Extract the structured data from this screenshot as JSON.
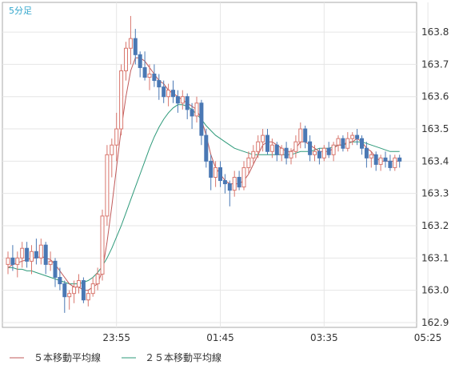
{
  "chart_data": {
    "type": "candlestick",
    "timeframe_label": "5分足",
    "ylim": [
      162.885,
      163.892
    ],
    "y_ticks": [
      163.8,
      163.7,
      163.6,
      163.5,
      163.4,
      163.3,
      163.2,
      163.1,
      163.0,
      162.9
    ],
    "y_tick_labels": [
      "163.8",
      "163.7",
      "163.6",
      "163.5",
      "163.4",
      "163.3",
      "163.2",
      "163.1",
      "163.0",
      "162.9"
    ],
    "x_tick_labels": [
      "23:55",
      "01:45",
      "03:35",
      "05:25"
    ],
    "x_tick_candle_index": [
      23,
      45,
      67,
      89
    ],
    "grid": true,
    "colors": {
      "up": "#d8766d",
      "down": "#4a78b4",
      "ma5": "#c05a5a",
      "ma25": "#2e9a7a",
      "grid": "#e6e6e6",
      "frame": "#aaaaaa",
      "label": "#333333",
      "timeframe": "#33a6cc"
    },
    "legend_position": "bottom-left",
    "ohlc": [
      [
        163.08,
        163.12,
        163.05,
        163.1
      ],
      [
        163.1,
        163.14,
        163.06,
        163.08
      ],
      [
        163.08,
        163.12,
        163.04,
        163.1
      ],
      [
        163.1,
        163.15,
        163.07,
        163.13
      ],
      [
        163.13,
        163.15,
        163.07,
        163.09
      ],
      [
        163.09,
        163.14,
        163.05,
        163.12
      ],
      [
        163.12,
        163.16,
        163.08,
        163.1
      ],
      [
        163.1,
        163.16,
        163.08,
        163.14
      ],
      [
        163.14,
        163.15,
        163.05,
        163.08
      ],
      [
        163.08,
        163.12,
        163.06,
        163.09
      ],
      [
        163.09,
        163.1,
        163.01,
        163.04
      ],
      [
        163.04,
        163.07,
        163.0,
        163.02
      ],
      [
        163.02,
        163.03,
        162.93,
        162.98
      ],
      [
        162.98,
        163.0,
        162.94,
        162.99
      ],
      [
        162.99,
        163.03,
        162.96,
        163.01
      ],
      [
        163.01,
        163.05,
        162.99,
        163.03
      ],
      [
        163.03,
        163.04,
        162.96,
        162.97
      ],
      [
        162.97,
        163.0,
        162.95,
        162.99
      ],
      [
        162.99,
        163.04,
        162.98,
        163.02
      ],
      [
        163.02,
        163.07,
        163.0,
        163.05
      ],
      [
        163.05,
        163.25,
        163.03,
        163.23
      ],
      [
        163.23,
        163.45,
        163.2,
        163.42
      ],
      [
        163.42,
        163.47,
        163.35,
        163.45
      ],
      [
        163.45,
        163.55,
        163.4,
        163.5
      ],
      [
        163.5,
        163.7,
        163.48,
        163.68
      ],
      [
        163.68,
        163.77,
        163.65,
        163.75
      ],
      [
        163.75,
        163.85,
        163.7,
        163.78
      ],
      [
        163.78,
        163.81,
        163.7,
        163.73
      ],
      [
        163.73,
        163.74,
        163.66,
        163.69
      ],
      [
        163.69,
        163.74,
        163.65,
        163.66
      ],
      [
        163.66,
        163.7,
        163.62,
        163.67
      ],
      [
        163.67,
        163.7,
        163.63,
        163.65
      ],
      [
        163.65,
        163.67,
        163.59,
        163.63
      ],
      [
        163.63,
        163.65,
        163.58,
        163.6
      ],
      [
        163.6,
        163.64,
        163.57,
        163.62
      ],
      [
        163.62,
        163.65,
        163.58,
        163.6
      ],
      [
        163.6,
        163.62,
        163.55,
        163.58
      ],
      [
        163.58,
        163.62,
        163.56,
        163.6
      ],
      [
        163.6,
        163.61,
        163.53,
        163.56
      ],
      [
        163.56,
        163.58,
        163.5,
        163.54
      ],
      [
        163.54,
        163.6,
        163.52,
        163.58
      ],
      [
        163.58,
        163.59,
        163.45,
        163.48
      ],
      [
        163.48,
        163.5,
        163.38,
        163.4
      ],
      [
        163.4,
        163.42,
        163.31,
        163.35
      ],
      [
        163.35,
        163.4,
        163.32,
        163.38
      ],
      [
        163.38,
        163.4,
        163.32,
        163.34
      ],
      [
        163.34,
        163.36,
        163.3,
        163.33
      ],
      [
        163.33,
        163.34,
        163.26,
        163.31
      ],
      [
        163.31,
        163.37,
        163.29,
        163.35
      ],
      [
        163.35,
        163.37,
        163.31,
        163.32
      ],
      [
        163.32,
        163.4,
        163.31,
        163.38
      ],
      [
        163.38,
        163.43,
        163.36,
        163.41
      ],
      [
        163.41,
        163.45,
        163.39,
        163.43
      ],
      [
        163.43,
        163.48,
        163.41,
        163.46
      ],
      [
        163.46,
        163.5,
        163.43,
        163.48
      ],
      [
        163.48,
        163.5,
        163.42,
        163.43
      ],
      [
        163.43,
        163.47,
        163.41,
        163.45
      ],
      [
        163.45,
        163.46,
        163.4,
        163.42
      ],
      [
        163.42,
        163.45,
        163.4,
        163.44
      ],
      [
        163.44,
        163.46,
        163.39,
        163.41
      ],
      [
        163.41,
        163.44,
        163.39,
        163.43
      ],
      [
        163.43,
        163.48,
        163.41,
        163.46
      ],
      [
        163.46,
        163.52,
        163.44,
        163.5
      ],
      [
        163.5,
        163.51,
        163.44,
        163.46
      ],
      [
        163.46,
        163.48,
        163.4,
        163.42
      ],
      [
        163.42,
        163.45,
        163.4,
        163.43
      ],
      [
        163.43,
        163.44,
        163.39,
        163.41
      ],
      [
        163.41,
        163.45,
        163.4,
        163.44
      ],
      [
        163.44,
        163.46,
        163.41,
        163.42
      ],
      [
        163.42,
        163.46,
        163.4,
        163.45
      ],
      [
        163.45,
        163.48,
        163.43,
        163.47
      ],
      [
        163.47,
        163.48,
        163.43,
        163.44
      ],
      [
        163.44,
        163.49,
        163.43,
        163.47
      ],
      [
        163.47,
        163.49,
        163.45,
        163.48
      ],
      [
        163.48,
        163.5,
        163.45,
        163.47
      ],
      [
        163.47,
        163.48,
        163.42,
        163.44
      ],
      [
        163.44,
        163.46,
        163.38,
        163.41
      ],
      [
        163.41,
        163.43,
        163.38,
        163.42
      ],
      [
        163.42,
        163.43,
        163.37,
        163.39
      ],
      [
        163.39,
        163.42,
        163.37,
        163.41
      ],
      [
        163.41,
        163.43,
        163.38,
        163.4
      ],
      [
        163.4,
        163.42,
        163.37,
        163.38
      ],
      [
        163.38,
        163.42,
        163.37,
        163.41
      ],
      [
        163.41,
        163.42,
        163.38,
        163.4
      ]
    ],
    "ma5": [
      163.07,
      163.08,
      163.085,
      163.09,
      163.095,
      163.1,
      163.1,
      163.105,
      163.1,
      163.095,
      163.08,
      163.06,
      163.04,
      163.02,
      163.01,
      163.01,
      163.0,
      163.0,
      163.01,
      163.02,
      163.06,
      163.15,
      163.26,
      163.38,
      163.5,
      163.6,
      163.68,
      163.72,
      163.72,
      163.71,
      163.69,
      163.67,
      163.65,
      163.64,
      163.62,
      163.61,
      163.6,
      163.59,
      163.58,
      163.57,
      163.56,
      163.53,
      163.48,
      163.42,
      163.38,
      163.36,
      163.34,
      163.33,
      163.33,
      163.33,
      163.34,
      163.36,
      163.39,
      163.42,
      163.45,
      163.46,
      163.46,
      163.45,
      163.44,
      163.43,
      163.43,
      163.44,
      163.46,
      163.46,
      163.45,
      163.44,
      163.43,
      163.43,
      163.43,
      163.44,
      163.45,
      163.45,
      163.46,
      163.46,
      163.47,
      163.46,
      163.44,
      163.43,
      163.41,
      163.4,
      163.4,
      163.4,
      163.4,
      163.4
    ],
    "ma25": [
      163.07,
      163.07,
      163.065,
      163.065,
      163.06,
      163.06,
      163.055,
      163.05,
      163.045,
      163.04,
      163.035,
      163.03,
      163.025,
      163.02,
      163.02,
      163.02,
      163.025,
      163.03,
      163.04,
      163.055,
      163.075,
      163.1,
      163.13,
      163.165,
      163.2,
      163.24,
      163.28,
      163.32,
      163.36,
      163.4,
      163.44,
      163.475,
      163.505,
      163.53,
      163.55,
      163.565,
      163.575,
      163.575,
      163.57,
      163.56,
      163.545,
      163.53,
      163.51,
      163.495,
      163.48,
      163.47,
      163.46,
      163.45,
      163.44,
      163.435,
      163.43,
      163.425,
      163.42,
      163.42,
      163.42,
      163.42,
      163.42,
      163.42,
      163.42,
      163.42,
      163.42,
      163.425,
      163.43,
      163.43,
      163.43,
      163.435,
      163.44,
      163.44,
      163.44,
      163.445,
      163.45,
      163.45,
      163.455,
      163.46,
      163.46,
      163.46,
      163.455,
      163.45,
      163.445,
      163.44,
      163.435,
      163.43,
      163.43,
      163.43
    ]
  },
  "legend": {
    "ma5_label": "５本移動平均線",
    "ma25_label": "２５本移動平均線"
  }
}
